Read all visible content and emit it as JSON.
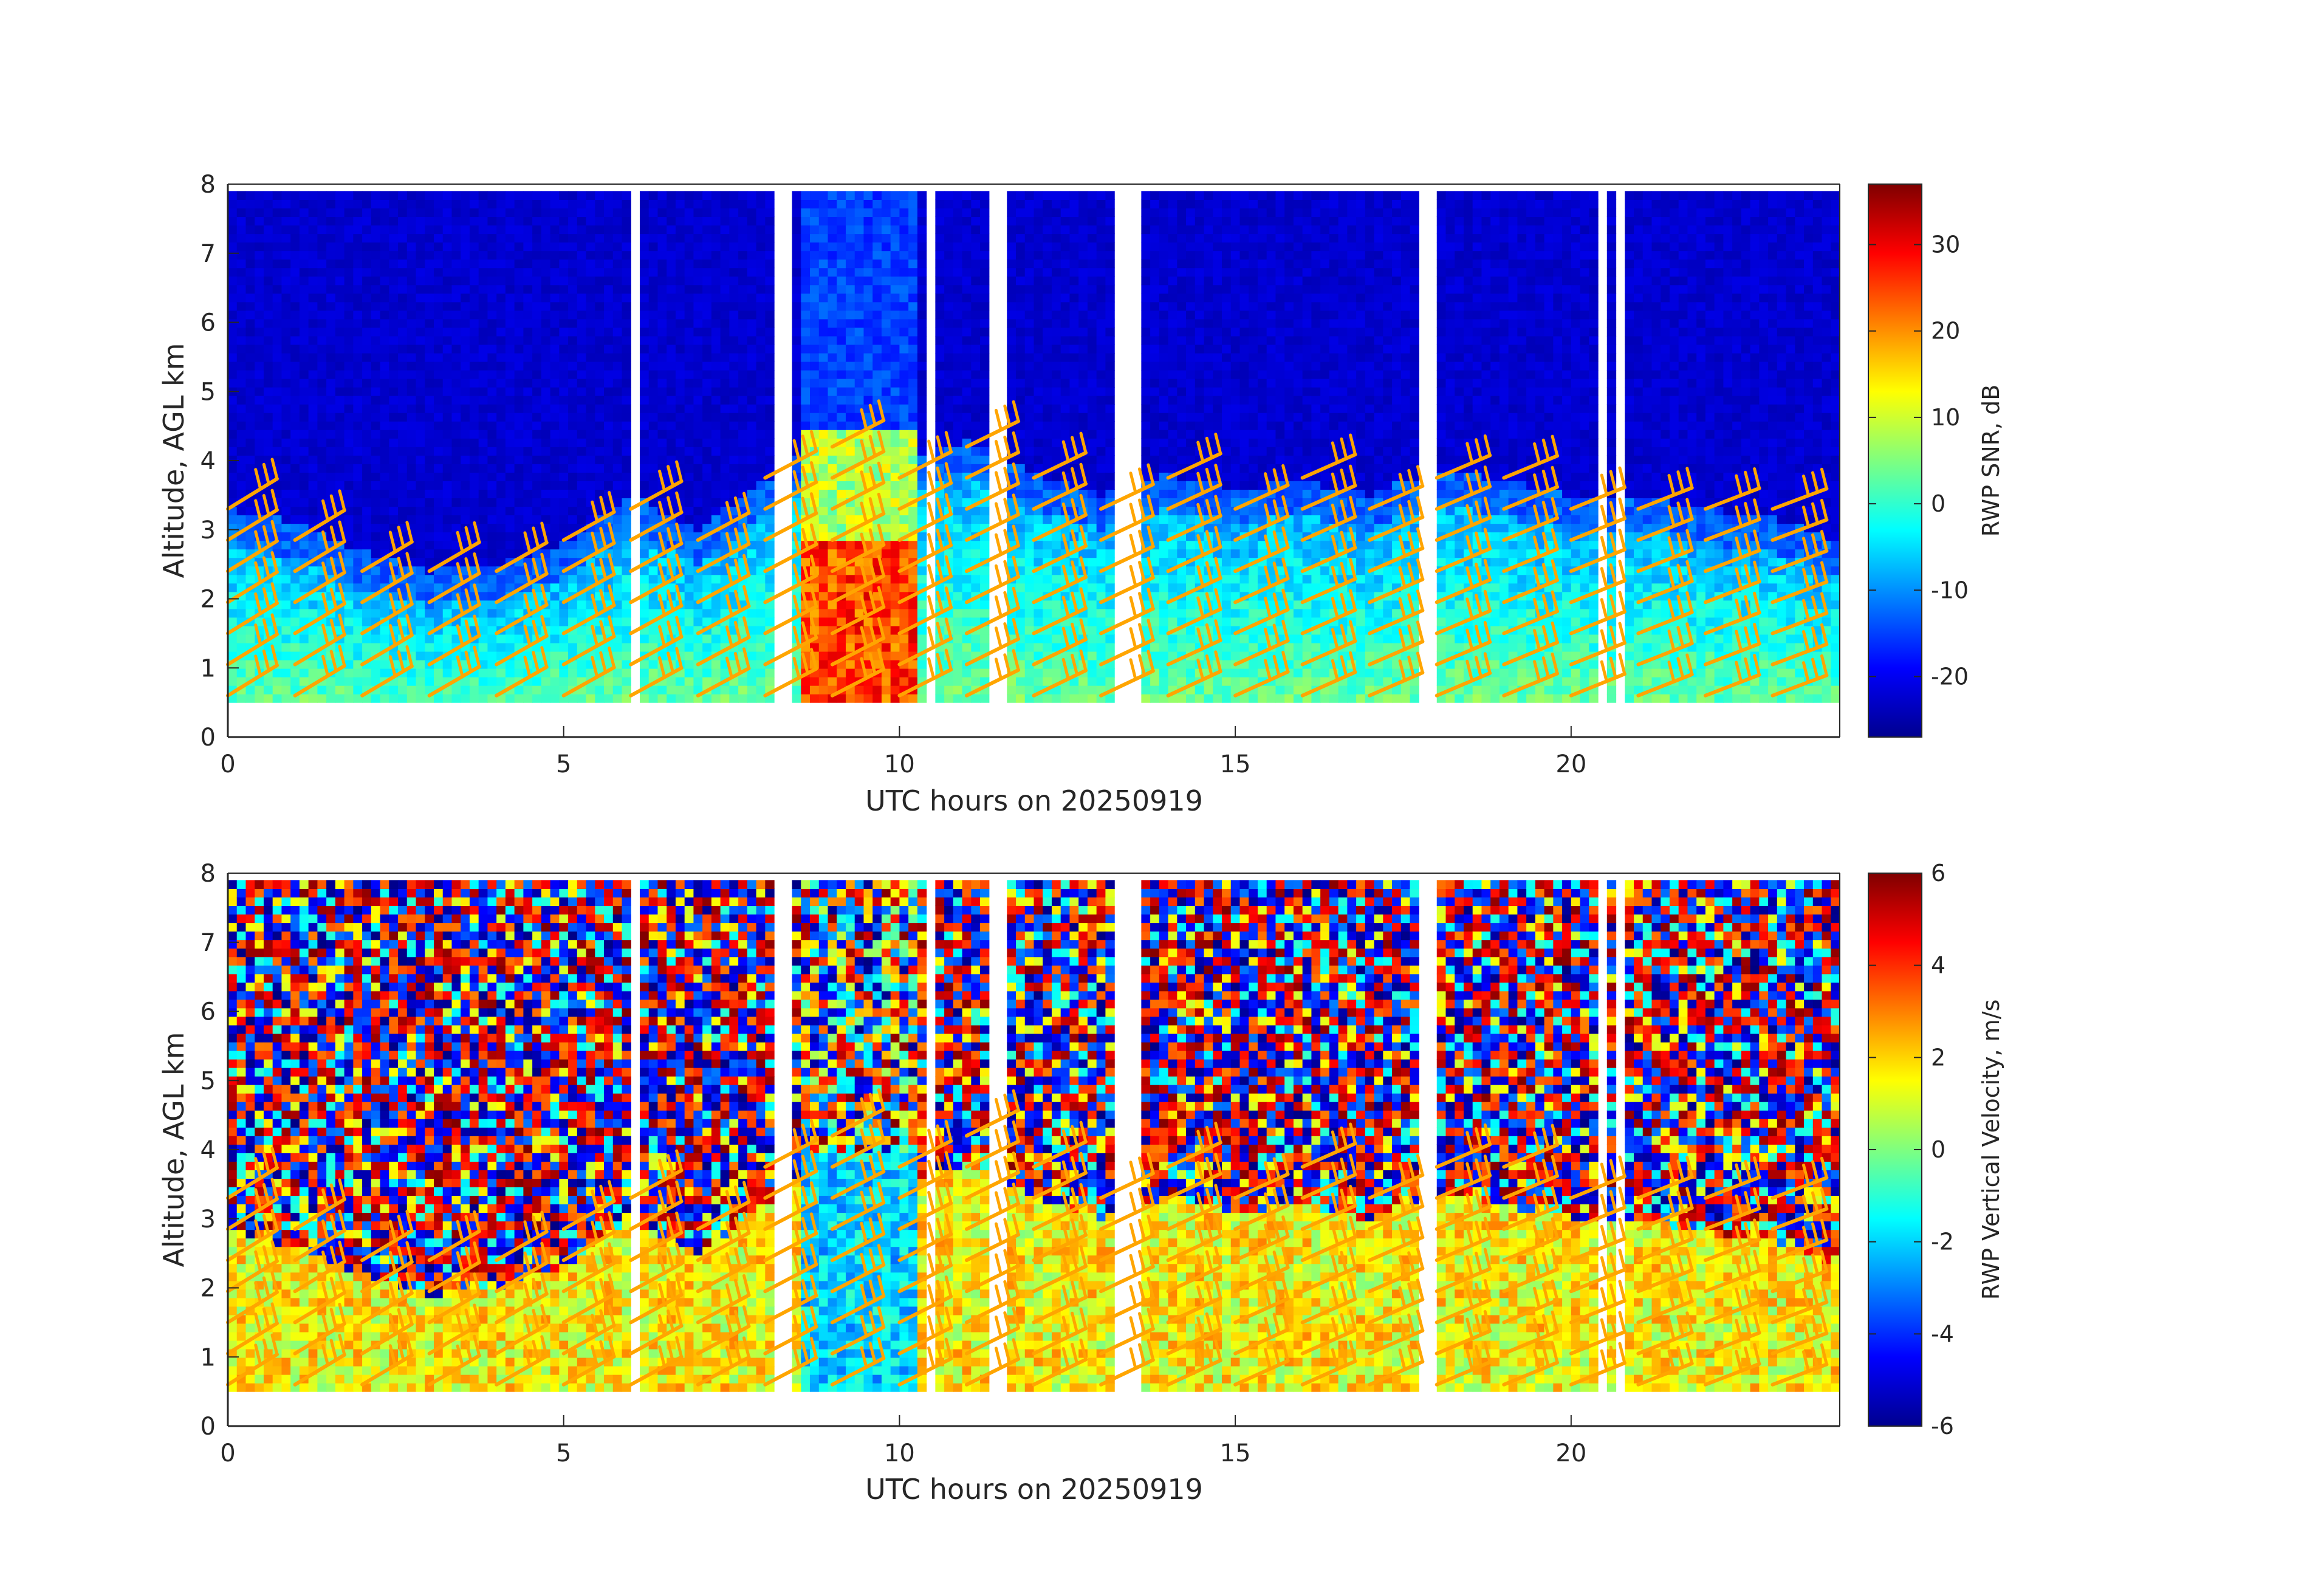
{
  "chart_data": [
    {
      "type": "heatmap",
      "panel": "top",
      "xlabel": "UTC hours on 20250919",
      "ylabel": "Altitude, AGL km",
      "xlim": [
        0,
        24
      ],
      "ylim": [
        0,
        8
      ],
      "xticks": [
        0,
        5,
        10,
        15,
        20
      ],
      "xtick_labels": [
        "0",
        "5",
        "10",
        "15",
        "20"
      ],
      "yticks": [
        0,
        1,
        2,
        3,
        4,
        5,
        6,
        7,
        8
      ],
      "ytick_labels": [
        "0",
        "1",
        "2",
        "3",
        "4",
        "5",
        "6",
        "7",
        "8"
      ],
      "colorbar": {
        "label": "RWP SNR, dB",
        "range": [
          -27,
          37
        ],
        "ticks": [
          -20,
          -10,
          0,
          10,
          20,
          30
        ],
        "tick_labels": [
          "-20",
          "-10",
          "0",
          "10",
          "20",
          "30"
        ],
        "colormap": "jet"
      },
      "data_altitude_range_km": [
        0.5,
        7.9
      ],
      "background_snr_db": -22,
      "boundary_layer_top_km": [
        [
          0,
          2.8
        ],
        [
          1,
          2.6
        ],
        [
          2,
          2.2
        ],
        [
          3,
          1.9
        ],
        [
          4,
          2.0
        ],
        [
          5,
          2.3
        ],
        [
          6,
          3.0
        ],
        [
          7,
          2.5
        ],
        [
          8,
          3.2
        ],
        [
          9,
          4.0
        ],
        [
          10,
          3.5
        ],
        [
          11,
          3.8
        ],
        [
          12,
          3.3
        ],
        [
          13,
          3.0
        ],
        [
          14,
          3.3
        ],
        [
          15,
          3.1
        ],
        [
          16,
          3.2
        ],
        [
          17,
          3.0
        ],
        [
          18,
          3.4
        ],
        [
          19,
          3.2
        ],
        [
          20,
          3.0
        ],
        [
          21,
          3.0
        ],
        [
          22,
          2.8
        ],
        [
          23,
          2.7
        ],
        [
          24,
          2.3
        ]
      ],
      "precipitation_event_hours": [
        8.5,
        10.2
      ],
      "precipitation_peak_snr_db": 30,
      "missing_data_hours": [
        6.0,
        8.1,
        8.3,
        10.4,
        11.4,
        13.2,
        13.4,
        17.8,
        20.4,
        20.7
      ],
      "wind_barbs": {
        "color": "#ffa500"
      }
    },
    {
      "type": "heatmap",
      "panel": "bottom",
      "xlabel": "UTC hours on 20250919",
      "ylabel": "Altitude, AGL km",
      "xlim": [
        0,
        24
      ],
      "ylim": [
        0,
        8
      ],
      "xticks": [
        0,
        5,
        10,
        15,
        20
      ],
      "xtick_labels": [
        "0",
        "5",
        "10",
        "15",
        "20"
      ],
      "yticks": [
        0,
        1,
        2,
        3,
        4,
        5,
        6,
        7,
        8
      ],
      "ytick_labels": [
        "0",
        "1",
        "2",
        "3",
        "4",
        "5",
        "6",
        "7",
        "8"
      ],
      "colorbar": {
        "label": "RWP Vertical Velocity, m/s",
        "range": [
          -6,
          6
        ],
        "ticks": [
          -6,
          -4,
          -2,
          0,
          2,
          4,
          6
        ],
        "tick_labels": [
          "-6",
          "-4",
          "-2",
          "0",
          "2",
          "4",
          "6"
        ],
        "colormap": "jet"
      },
      "data_altitude_range_km": [
        0.5,
        7.9
      ],
      "noise_above_boundary_layer": true,
      "boundary_layer_velocity_ms": 1.5,
      "precipitation_fall_velocity_ms": -4.5,
      "precipitation_event_hours": [
        8.5,
        10.2
      ],
      "wind_barbs": {
        "color": "#ffa500"
      }
    }
  ]
}
